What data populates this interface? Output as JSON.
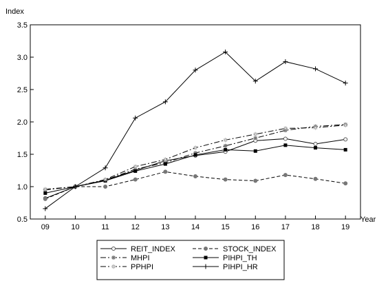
{
  "chart_data": {
    "type": "line",
    "title": "",
    "ylabel": "Index",
    "xlabel": "Year",
    "ylim": [
      0.5,
      3.5
    ],
    "yticks": [
      "0.5",
      "1.0",
      "1.5",
      "2.0",
      "2.5",
      "3.0",
      "3.5"
    ],
    "categories": [
      "09",
      "10",
      "11",
      "12",
      "13",
      "14",
      "15",
      "16",
      "17",
      "18",
      "19"
    ],
    "grid": false,
    "legend_position": "bottom",
    "series": [
      {
        "name": "REIT_INDEX",
        "style": "solid",
        "marker": "open-circle",
        "values": [
          0.82,
          1.0,
          1.1,
          1.25,
          1.4,
          1.48,
          1.54,
          1.71,
          1.74,
          1.66,
          1.73
        ]
      },
      {
        "name": "STOCK_INDEX",
        "style": "dashed",
        "marker": "filled-circle",
        "values": [
          0.81,
          1.0,
          1.0,
          1.11,
          1.23,
          1.16,
          1.11,
          1.09,
          1.18,
          1.12,
          1.05
        ]
      },
      {
        "name": "MHPI",
        "style": "dashdot",
        "marker": "star",
        "values": [
          0.95,
          1.0,
          1.1,
          1.27,
          1.37,
          1.52,
          1.63,
          1.75,
          1.87,
          1.93,
          1.96
        ]
      },
      {
        "name": "PIHPI_TH",
        "style": "solid",
        "marker": "filled-square",
        "values": [
          0.9,
          1.0,
          1.09,
          1.24,
          1.35,
          1.49,
          1.57,
          1.55,
          1.64,
          1.6,
          1.57
        ]
      },
      {
        "name": "PPHPI",
        "style": "dashdot",
        "marker": "open-star",
        "values": [
          0.96,
          1.0,
          1.11,
          1.31,
          1.42,
          1.6,
          1.72,
          1.81,
          1.9,
          1.91,
          1.95
        ]
      },
      {
        "name": "PIHPI_HR",
        "style": "solid",
        "marker": "plus",
        "values": [
          0.66,
          1.0,
          1.29,
          2.06,
          2.31,
          2.8,
          3.08,
          2.63,
          2.93,
          2.82,
          2.6
        ]
      }
    ]
  }
}
